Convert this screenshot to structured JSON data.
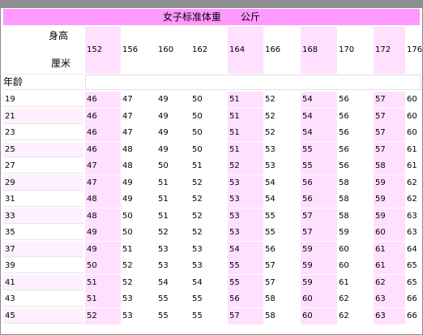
{
  "title": "女子标准体重　　公斤",
  "header": {
    "height_label": "身高",
    "unit_label": "厘米",
    "age_label": "年龄",
    "heights": [
      "152",
      "156",
      "160",
      "162",
      "164",
      "166",
      "168",
      "170",
      "172",
      "176"
    ]
  },
  "rows": [
    {
      "age": "19",
      "weights": [
        "46",
        "47",
        "49",
        "50",
        "51",
        "52",
        "54",
        "56",
        "57",
        "60"
      ]
    },
    {
      "age": "21",
      "weights": [
        "46",
        "47",
        "49",
        "50",
        "51",
        "52",
        "54",
        "56",
        "57",
        "60"
      ]
    },
    {
      "age": "23",
      "weights": [
        "46",
        "47",
        "49",
        "50",
        "51",
        "52",
        "54",
        "56",
        "57",
        "60"
      ]
    },
    {
      "age": "25",
      "weights": [
        "46",
        "48",
        "49",
        "50",
        "51",
        "53",
        "55",
        "56",
        "57",
        "61"
      ]
    },
    {
      "age": "27",
      "weights": [
        "47",
        "48",
        "50",
        "51",
        "52",
        "53",
        "55",
        "56",
        "58",
        "61"
      ]
    },
    {
      "age": "29",
      "weights": [
        "47",
        "49",
        "51",
        "52",
        "53",
        "54",
        "56",
        "58",
        "59",
        "62"
      ]
    },
    {
      "age": "31",
      "weights": [
        "48",
        "49",
        "51",
        "52",
        "53",
        "54",
        "56",
        "58",
        "59",
        "62"
      ]
    },
    {
      "age": "33",
      "weights": [
        "48",
        "50",
        "51",
        "52",
        "53",
        "55",
        "57",
        "58",
        "59",
        "63"
      ]
    },
    {
      "age": "35",
      "weights": [
        "49",
        "50",
        "52",
        "52",
        "53",
        "55",
        "57",
        "59",
        "60",
        "63"
      ]
    },
    {
      "age": "37",
      "weights": [
        "49",
        "51",
        "53",
        "53",
        "54",
        "56",
        "59",
        "60",
        "61",
        "64"
      ]
    },
    {
      "age": "39",
      "weights": [
        "50",
        "52",
        "53",
        "53",
        "55",
        "57",
        "59",
        "60",
        "61",
        "65"
      ]
    },
    {
      "age": "41",
      "weights": [
        "51",
        "52",
        "54",
        "54",
        "55",
        "57",
        "59",
        "61",
        "62",
        "65"
      ]
    },
    {
      "age": "43",
      "weights": [
        "51",
        "53",
        "55",
        "55",
        "56",
        "58",
        "60",
        "62",
        "63",
        "66"
      ]
    },
    {
      "age": "45",
      "weights": [
        "52",
        "53",
        "55",
        "55",
        "57",
        "58",
        "60",
        "62",
        "63",
        "66"
      ]
    }
  ]
}
